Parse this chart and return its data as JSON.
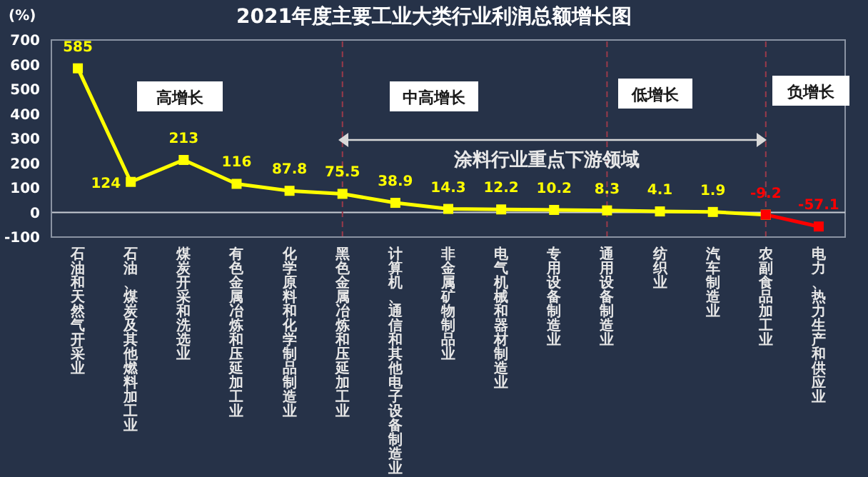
{
  "chart_data": {
    "type": "line",
    "title": "2021年度主要工业大类行业利润总额增长图",
    "ylabel": "(%)",
    "categories": [
      "石油和天然气开采业",
      "石油、煤炭及其他燃料加工业",
      "煤炭开采和洗选业",
      "有色金属冶炼和压延加工业",
      "化学原料和化学制品制造业",
      "黑色金属冶炼和压延加工业",
      "计算机、通信和其他电子设备制造业",
      "非金属矿物制品业",
      "电气机械和器材制造业",
      "专用设备制造业",
      "通用设备制造业",
      "纺织业",
      "汽车制造业",
      "农副食品加工业",
      "电力、热力生产和供应业"
    ],
    "series": [
      {
        "color": "#ffff00",
        "values": [
          585,
          124,
          213,
          116,
          87.8,
          75.5,
          38.9,
          14.3,
          12.2,
          10.2,
          8.3,
          4.1,
          1.9,
          -9.2,
          null
        ],
        "value_labels": [
          "585",
          "124",
          "213",
          "116",
          "87.8",
          "75.5",
          "38.9",
          "14.3",
          "12.2",
          "10.2",
          "8.3",
          "4.1",
          "1.9",
          null,
          null
        ]
      },
      {
        "color": "#ff0000",
        "values": [
          null,
          null,
          null,
          null,
          null,
          null,
          null,
          null,
          null,
          null,
          null,
          null,
          null,
          -9.2,
          -57.1
        ],
        "value_labels": [
          null,
          null,
          null,
          null,
          null,
          null,
          null,
          null,
          null,
          null,
          null,
          null,
          null,
          "-9.2",
          "-57.1"
        ]
      }
    ],
    "marker": "square",
    "ylim": [
      -100,
      700
    ],
    "yticks": [
      -100,
      0,
      100,
      200,
      300,
      400,
      500,
      600,
      700
    ],
    "grid": false,
    "ref_lines": [
      {
        "axis": "x",
        "value": "黑色金属冶炼和压延加工业",
        "color": "#9a3a4a",
        "line_style": "dashed"
      },
      {
        "axis": "x",
        "value": "通用设备制造业",
        "color": "#9a3a4a",
        "line_style": "dashed"
      },
      {
        "axis": "x",
        "value": "农副食品加工业",
        "color": "#9a3a4a",
        "line_style": "dashed"
      }
    ],
    "annotations": [
      "高增长",
      "中高增长",
      "低增长",
      "负增长",
      "涂料行业重点下游领域"
    ]
  }
}
